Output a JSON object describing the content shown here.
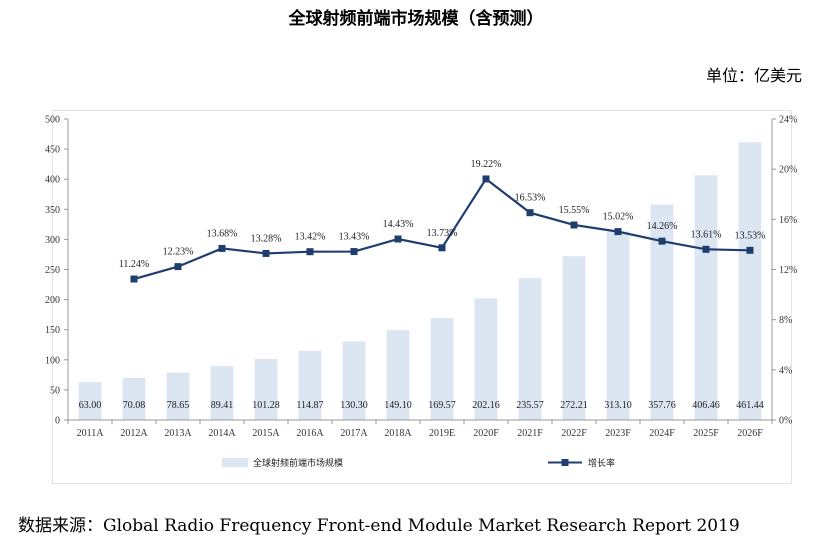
{
  "title": "全球射频前端市场规模（含预测）",
  "unit_label": "单位：亿美元",
  "source": {
    "label": "数据来源：",
    "text": "Global Radio Frequency Front-end Module Market Research Report 2019"
  },
  "colors": {
    "bar": "#dce6f2",
    "line": "#1f3d6e",
    "axis": "#999999"
  },
  "chart_data": {
    "type": "bar",
    "categories": [
      "2011A",
      "2012A",
      "2013A",
      "2014A",
      "2015A",
      "2016A",
      "2017A",
      "2018A",
      "2019E",
      "2020F",
      "2021F",
      "2022F",
      "2023F",
      "2024F",
      "2025F",
      "2026F"
    ],
    "series": [
      {
        "name": "全球射频前端市场规模",
        "type": "bar",
        "axis": "left",
        "values": [
          63.0,
          70.08,
          78.65,
          89.41,
          101.28,
          114.87,
          130.3,
          149.1,
          169.57,
          202.16,
          235.57,
          272.21,
          313.1,
          357.76,
          406.46,
          461.44
        ],
        "labels": [
          "63.00",
          "70.08",
          "78.65",
          "89.41",
          "101.28",
          "114.87",
          "130.30",
          "149.10",
          "169.57",
          "202.16",
          "235.57",
          "272.21",
          "313.10",
          "357.76",
          "406.46",
          "461.44"
        ]
      },
      {
        "name": "增长率",
        "type": "line",
        "axis": "right",
        "values": [
          null,
          11.24,
          12.23,
          13.68,
          13.28,
          13.42,
          13.43,
          14.43,
          13.73,
          19.22,
          16.53,
          15.55,
          15.02,
          14.26,
          13.61,
          13.53
        ],
        "labels": [
          null,
          "11.24%",
          "12.23%",
          "13.68%",
          "13.28%",
          "13.42%",
          "13.43%",
          "14.43%",
          "13.73%",
          "19.22%",
          "16.53%",
          "15.55%",
          "15.02%",
          "14.26%",
          "13.61%",
          "13.53%"
        ]
      }
    ],
    "left_axis": {
      "min": 0,
      "max": 500,
      "ticks": [
        "0",
        "50",
        "100",
        "150",
        "200",
        "250",
        "300",
        "350",
        "400",
        "450",
        "500"
      ]
    },
    "right_axis": {
      "min": 0,
      "max": 24,
      "ticks": [
        "0%",
        "4%",
        "8%",
        "12%",
        "16%",
        "20%",
        "24%"
      ]
    },
    "legend": {
      "position": "bottom"
    },
    "grid": false
  }
}
